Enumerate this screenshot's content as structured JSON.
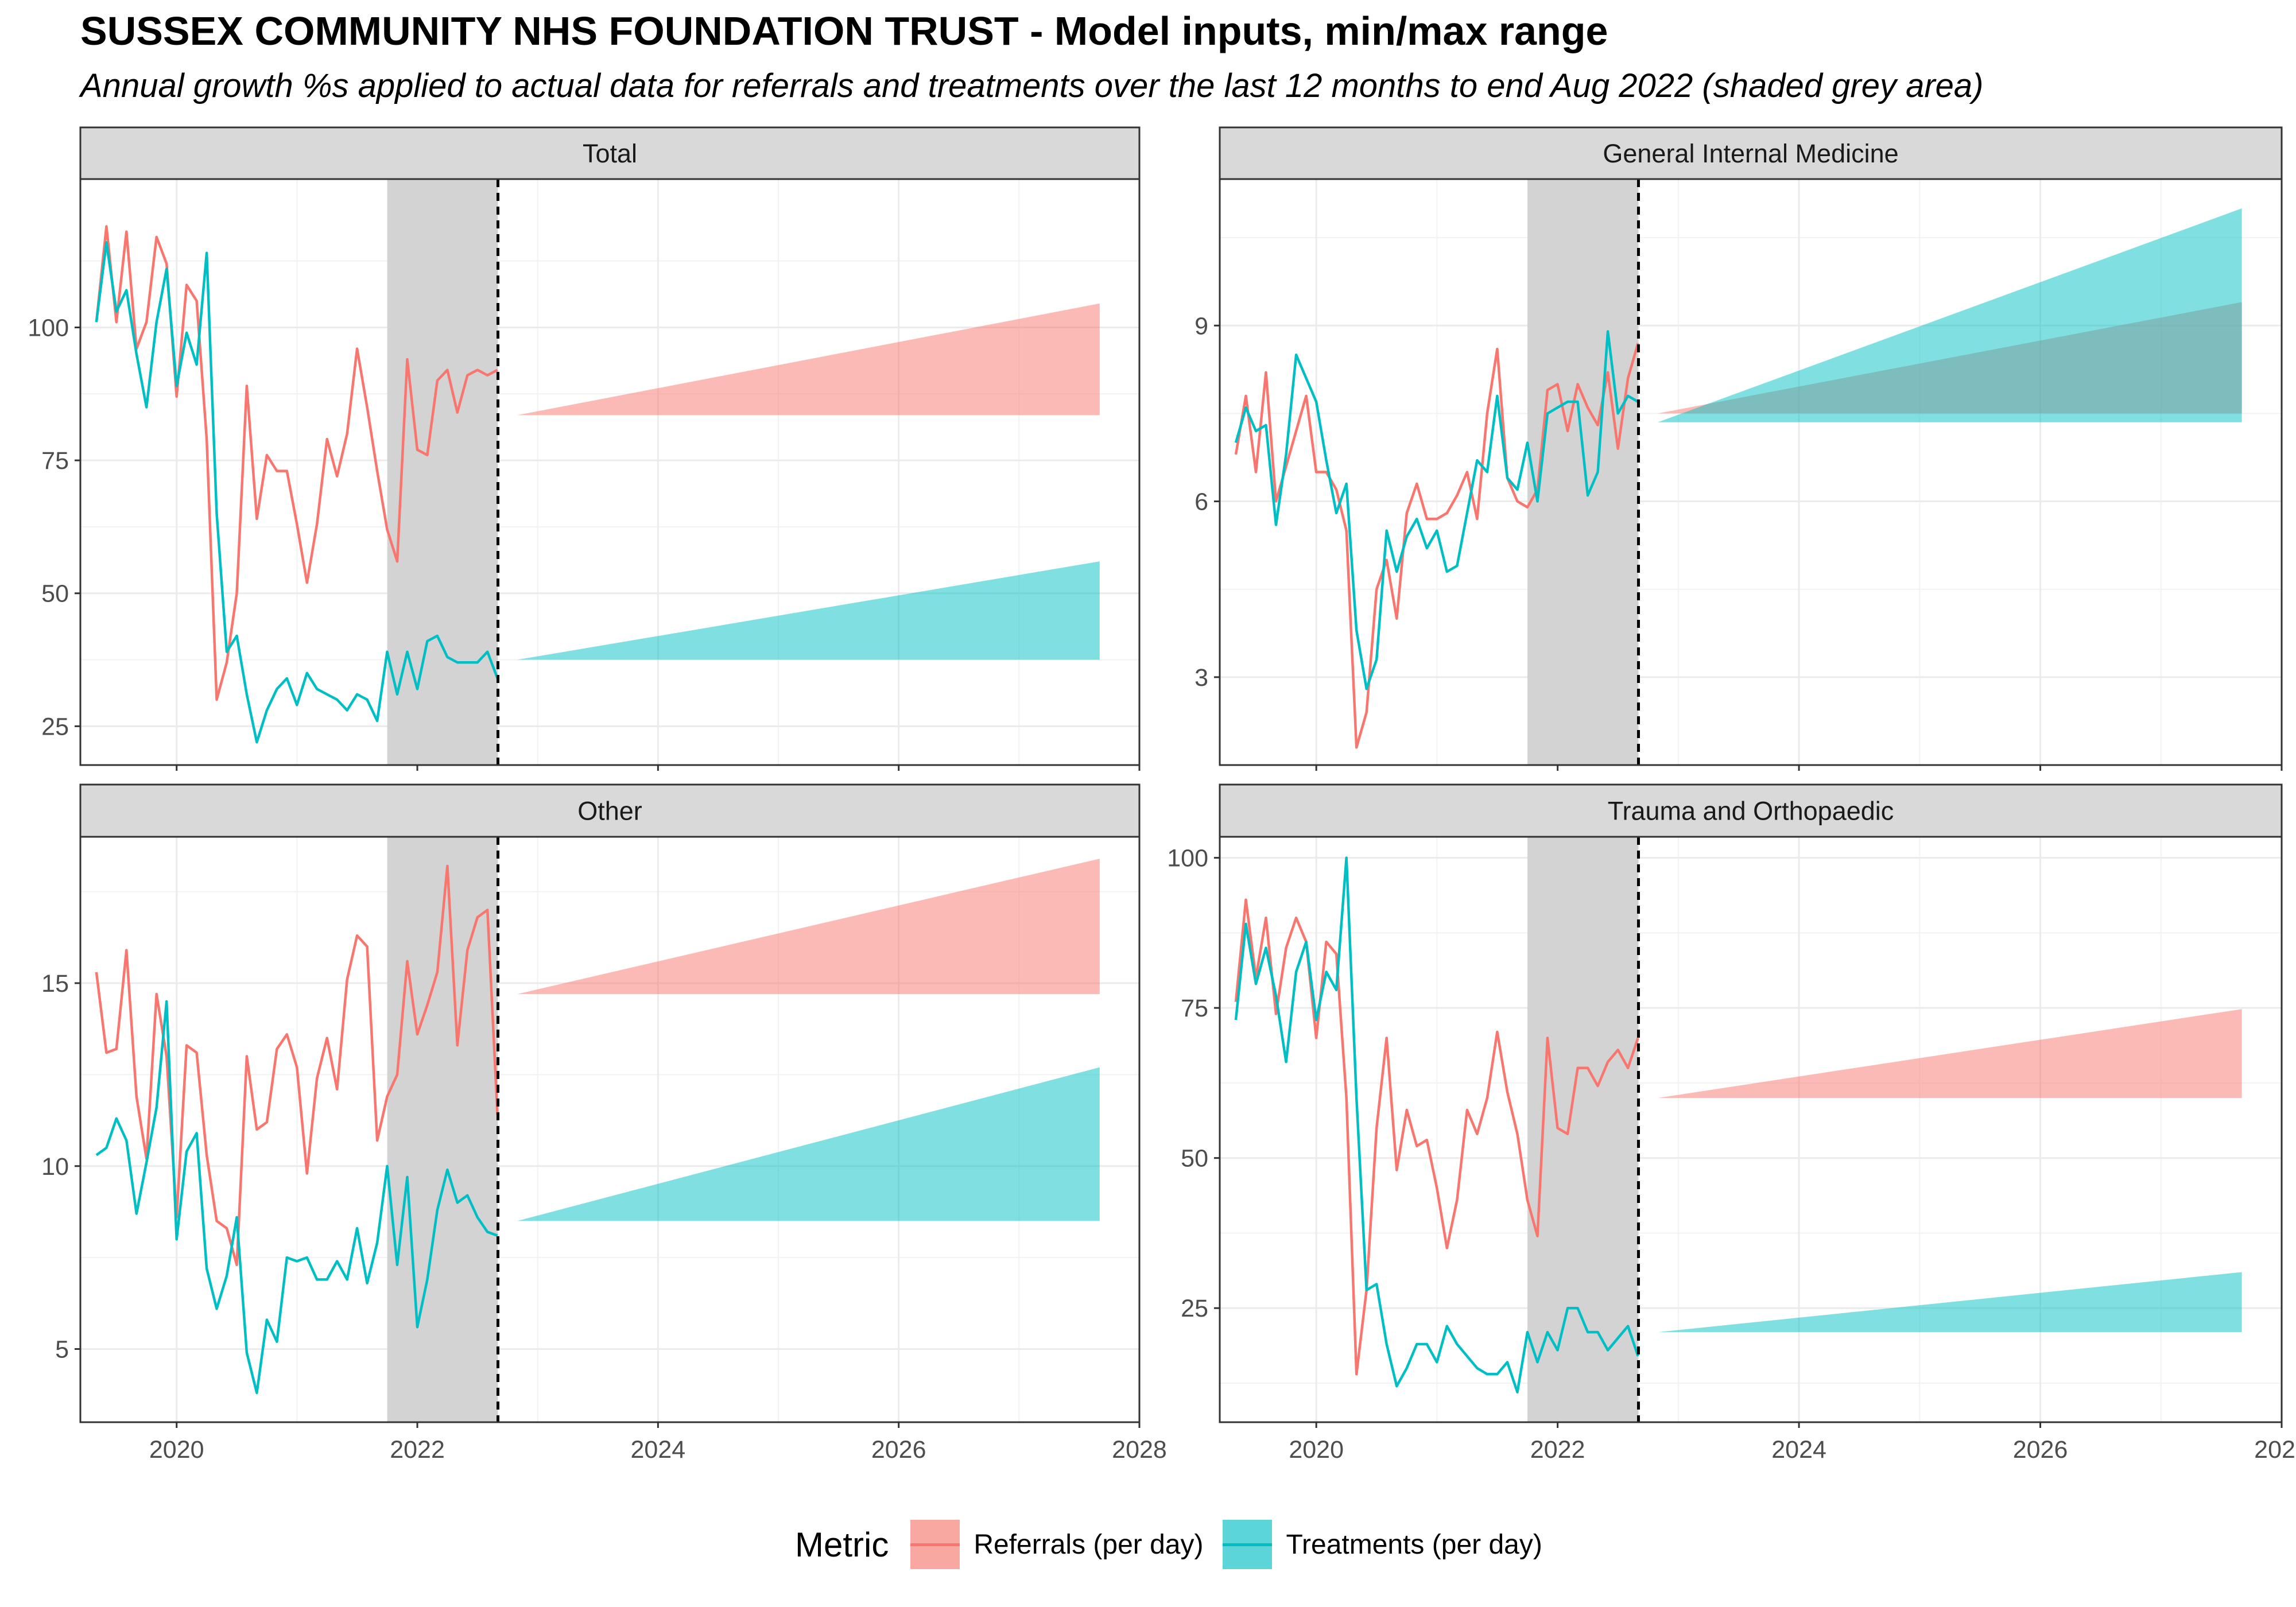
{
  "title": "SUSSEX COMMUNITY NHS FOUNDATION TRUST - Model inputs, min/max range",
  "subtitle": "Annual growth %s applied to actual data for referrals and treatments over the last 12 months to end Aug 2022 (shaded grey area)",
  "colors": {
    "referrals": "#F8766D",
    "treatments": "#00BFC4",
    "referrals_fill": "#F8A7A1",
    "treatments_fill": "#5CD5D8",
    "history_band": "#D3D3D3"
  },
  "legend": {
    "title": "Metric",
    "items": [
      {
        "label": "Referrals (per day)",
        "series": "referrals"
      },
      {
        "label": "Treatments (per day)",
        "series": "treatments"
      }
    ]
  },
  "chart_data": [
    {
      "type": "line",
      "panel": "Total",
      "xlim": [
        2019.2,
        2028.0
      ],
      "x_ticks": [
        2020,
        2022,
        2024,
        2026,
        2028
      ],
      "ylim": [
        17.7,
        127.9
      ],
      "y_ticks": [
        25,
        50,
        75,
        100
      ],
      "shaded_x": [
        2021.75,
        2022.67
      ],
      "x_start": 2019.333,
      "x_step": 0.08333,
      "series": [
        {
          "name": "Referrals (per day)",
          "key": "referrals",
          "values": [
            101,
            119,
            101,
            118,
            96,
            101,
            117,
            112,
            87,
            108,
            105,
            79,
            30,
            37,
            50,
            89,
            64,
            76,
            73,
            73,
            63,
            52,
            63,
            79,
            72,
            80,
            96,
            85,
            73,
            62,
            56,
            94,
            77,
            76,
            90,
            92,
            84,
            91,
            92,
            91,
            92
          ]
        },
        {
          "name": "Treatments (per day)",
          "key": "treatments",
          "values": [
            101,
            116,
            103,
            107,
            95,
            85,
            101,
            111,
            89,
            99,
            93,
            114,
            65,
            39,
            42,
            31,
            22,
            28,
            32,
            34,
            29,
            35,
            32,
            31,
            30,
            28,
            31,
            30,
            26,
            39,
            31,
            39,
            32,
            41,
            42,
            38,
            37,
            37,
            37,
            39,
            34
          ]
        }
      ],
      "ranges": [
        {
          "key": "referrals",
          "x": [
            2022.83,
            2027.67
          ],
          "start": 83.5,
          "low_end": 83.5,
          "high_end": 104.5
        },
        {
          "key": "treatments",
          "x": [
            2022.83,
            2027.67
          ],
          "start": 37.5,
          "low_end": 37.5,
          "high_end": 56
        }
      ]
    },
    {
      "type": "line",
      "panel": "General Internal Medicine",
      "xlim": [
        2019.2,
        2028.0
      ],
      "x_ticks": [
        2020,
        2022,
        2024,
        2026,
        2028
      ],
      "ylim": [
        1.5,
        11.5
      ],
      "y_ticks": [
        3,
        6,
        9
      ],
      "shaded_x": [
        2021.75,
        2022.67
      ],
      "x_start": 2019.333,
      "x_step": 0.08333,
      "series": [
        {
          "name": "Referrals (per day)",
          "key": "referrals",
          "values": [
            6.8,
            7.8,
            6.5,
            8.2,
            6.0,
            6.6,
            7.2,
            7.8,
            6.5,
            6.5,
            6.2,
            5.5,
            1.8,
            2.4,
            4.5,
            5.0,
            4.0,
            5.8,
            6.3,
            5.7,
            5.7,
            5.8,
            6.1,
            6.5,
            5.7,
            7.5,
            8.6,
            6.4,
            6.0,
            5.9,
            6.2,
            7.9,
            8.0,
            7.2,
            8.0,
            7.6,
            7.3,
            8.2,
            6.9,
            8.1,
            8.7
          ]
        },
        {
          "name": "Treatments (per day)",
          "key": "treatments",
          "values": [
            7.0,
            7.6,
            7.2,
            7.3,
            5.6,
            6.8,
            8.5,
            8.1,
            7.7,
            6.7,
            5.8,
            6.3,
            3.8,
            2.8,
            3.3,
            5.5,
            4.8,
            5.4,
            5.7,
            5.2,
            5.5,
            4.8,
            4.9,
            5.8,
            6.7,
            6.5,
            7.8,
            6.4,
            6.2,
            7.0,
            6.0,
            7.5,
            7.6,
            7.7,
            7.7,
            6.1,
            6.5,
            8.9,
            7.5,
            7.8,
            7.7
          ]
        }
      ],
      "ranges": [
        {
          "key": "referrals",
          "x": [
            2022.83,
            2027.67
          ],
          "start": 7.5,
          "low_end": 7.5,
          "high_end": 9.4
        },
        {
          "key": "treatments",
          "x": [
            2022.83,
            2027.67
          ],
          "start": 7.35,
          "low_end": 7.35,
          "high_end": 11.0
        }
      ]
    },
    {
      "type": "line",
      "panel": "Other",
      "xlim": [
        2019.2,
        2028.0
      ],
      "x_ticks": [
        2020,
        2022,
        2024,
        2026,
        2028
      ],
      "ylim": [
        3.0,
        19.0
      ],
      "y_ticks": [
        5,
        10,
        15
      ],
      "shaded_x": [
        2021.75,
        2022.67
      ],
      "x_start": 2019.333,
      "x_step": 0.08333,
      "series": [
        {
          "name": "Referrals (per day)",
          "key": "referrals",
          "values": [
            15.3,
            13.1,
            13.2,
            15.9,
            11.9,
            10.2,
            14.7,
            13.0,
            8.6,
            13.3,
            13.1,
            10.3,
            8.5,
            8.3,
            7.3,
            13.0,
            11.0,
            11.2,
            13.2,
            13.6,
            12.7,
            9.8,
            12.4,
            13.5,
            12.1,
            15.1,
            16.3,
            16.0,
            10.7,
            11.9,
            12.5,
            15.6,
            13.6,
            14.4,
            15.3,
            18.2,
            13.3,
            15.9,
            16.8,
            17.0,
            11.4
          ]
        },
        {
          "name": "Treatments (per day)",
          "key": "treatments",
          "values": [
            10.3,
            10.5,
            11.3,
            10.7,
            8.7,
            10.1,
            11.6,
            14.5,
            8.0,
            10.4,
            10.9,
            7.2,
            6.1,
            7.0,
            8.6,
            4.9,
            3.8,
            5.8,
            5.2,
            7.5,
            7.4,
            7.5,
            6.9,
            6.9,
            7.4,
            6.9,
            8.3,
            6.8,
            7.9,
            10.0,
            7.3,
            9.7,
            5.6,
            6.9,
            8.8,
            9.9,
            9.0,
            9.2,
            8.6,
            8.2,
            8.1
          ]
        }
      ],
      "ranges": [
        {
          "key": "referrals",
          "x": [
            2022.83,
            2027.67
          ],
          "start": 14.7,
          "low_end": 14.7,
          "high_end": 18.4
        },
        {
          "key": "treatments",
          "x": [
            2022.83,
            2027.67
          ],
          "start": 8.5,
          "low_end": 8.5,
          "high_end": 12.7
        }
      ]
    },
    {
      "type": "line",
      "panel": "Trauma and Orthopaedic",
      "xlim": [
        2019.2,
        2028.0
      ],
      "x_ticks": [
        2020,
        2022,
        2024,
        2026,
        2028
      ],
      "ylim": [
        6.0,
        103.5
      ],
      "y_ticks": [
        25,
        50,
        75,
        100
      ],
      "shaded_x": [
        2021.75,
        2022.67
      ],
      "x_start": 2019.333,
      "x_step": 0.08333,
      "series": [
        {
          "name": "Referrals (per day)",
          "key": "referrals",
          "values": [
            76,
            93,
            80,
            90,
            74,
            85,
            90,
            86,
            70,
            86,
            84,
            60,
            14,
            28,
            55,
            70,
            48,
            58,
            52,
            53,
            45,
            35,
            43,
            58,
            54,
            60,
            71,
            61,
            54,
            43,
            37,
            70,
            55,
            54,
            65,
            65,
            62,
            66,
            68,
            65,
            70
          ]
        },
        {
          "name": "Treatments (per day)",
          "key": "treatments",
          "values": [
            73,
            89,
            79,
            85,
            77,
            66,
            81,
            86,
            73,
            81,
            78,
            100,
            60,
            28,
            29,
            19,
            12,
            15,
            19,
            19,
            16,
            22,
            19,
            17,
            15,
            14,
            14,
            16,
            11,
            21,
            16,
            21,
            18,
            25,
            25,
            21,
            21,
            18,
            20,
            22,
            17
          ]
        }
      ],
      "ranges": [
        {
          "key": "referrals",
          "x": [
            2022.83,
            2027.67
          ],
          "start": 60,
          "low_end": 60,
          "high_end": 74.8
        },
        {
          "key": "treatments",
          "x": [
            2022.83,
            2027.67
          ],
          "start": 21,
          "low_end": 21,
          "high_end": 31
        }
      ]
    }
  ]
}
